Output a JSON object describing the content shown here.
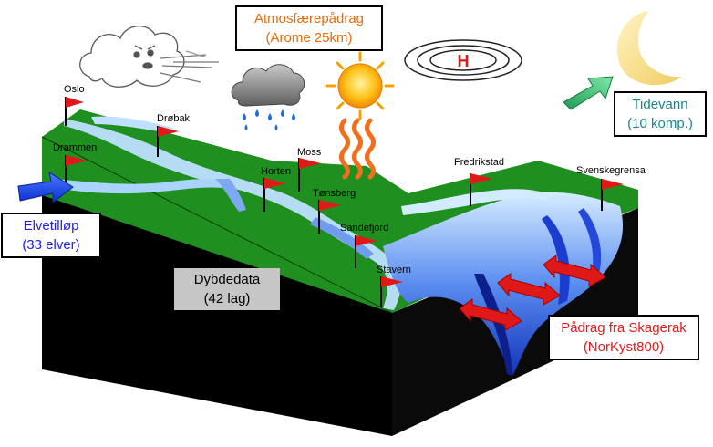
{
  "labels": {
    "atmosphere": {
      "line1": "Atmosfærepådrag",
      "line2": "(Arome 25km)"
    },
    "tide": {
      "line1": "Tidevann",
      "line2": "(10 komp.)"
    },
    "rivers": {
      "line1": "Elvetilløp",
      "line2": "(33 elver)"
    },
    "depth": {
      "line1": "Dybdedata",
      "line2": "(42 lag)"
    },
    "skagerak": {
      "line1": "Pådrag fra Skagerak",
      "line2": "(NorKyst800)"
    },
    "high_pressure": "H"
  },
  "locations": [
    "Oslo",
    "Drøbak",
    "Drammen",
    "Moss",
    "Horten",
    "Tønsberg",
    "Sandefjord",
    "Stavern",
    "Fredrikstad",
    "Svenskegrensa"
  ],
  "icons": [
    "wind-cloud-icon",
    "rain-cloud-icon",
    "sun-icon",
    "heat-waves-icon",
    "high-pressure-icon",
    "moon-icon",
    "green-arrow-icon",
    "blue-arrow-icon",
    "red-double-arrow-icon"
  ],
  "colors": {
    "land": "#1f8f1f",
    "water": "#3d74e0",
    "block": "#000000",
    "atmosphere_text": "#e46c0a",
    "tide_text": "#17868c",
    "river_text": "#1f1fd6",
    "skagerak_text": "#e21a1a",
    "flag": "#e01818"
  }
}
